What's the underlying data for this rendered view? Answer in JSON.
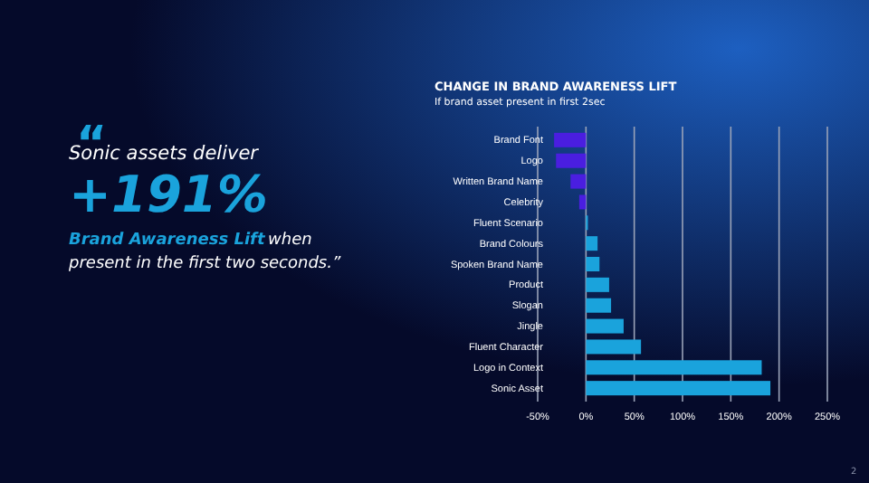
{
  "chart_data": {
    "type": "bar",
    "orientation": "horizontal",
    "title": "CHANGE IN BRAND AWARENESS LIFT",
    "subtitle": "If brand asset present in first 2sec",
    "categories": [
      "Brand Font",
      "Logo",
      "Written Brand Name",
      "Celebrity",
      "Fluent Scenario",
      "Brand Colours",
      "Spoken Brand Name",
      "Product",
      "Slogan",
      "Jingle",
      "Fluent Character",
      "Logo in Context",
      "Sonic Asset"
    ],
    "values": [
      -33,
      -31,
      -16,
      -7,
      2,
      12,
      14,
      24,
      26,
      39,
      57,
      182,
      191
    ],
    "colors": [
      "#4a1ee0",
      "#4a1ee0",
      "#4a1ee0",
      "#4a1ee0",
      "#1aa3dc",
      "#1aa3dc",
      "#1aa3dc",
      "#1aa3dc",
      "#1aa3dc",
      "#1aa3dc",
      "#1aa3dc",
      "#1aa3dc",
      "#1aa3dc"
    ],
    "xlim": [
      -50,
      250
    ],
    "xticks": [
      {
        "value": -50,
        "label": "-50%"
      },
      {
        "value": 0,
        "label": "0%"
      },
      {
        "value": 50,
        "label": "50%"
      },
      {
        "value": 100,
        "label": "100%"
      },
      {
        "value": 150,
        "label": "150%"
      },
      {
        "value": 200,
        "label": "200%"
      },
      {
        "value": 250,
        "label": "250%"
      }
    ],
    "grid": "x",
    "annotations": [
      "“",
      "Sonic assets deliver",
      "+191%",
      "Brand Awareness Lift",
      "when",
      "present in the first two seconds.”",
      "2"
    ]
  }
}
